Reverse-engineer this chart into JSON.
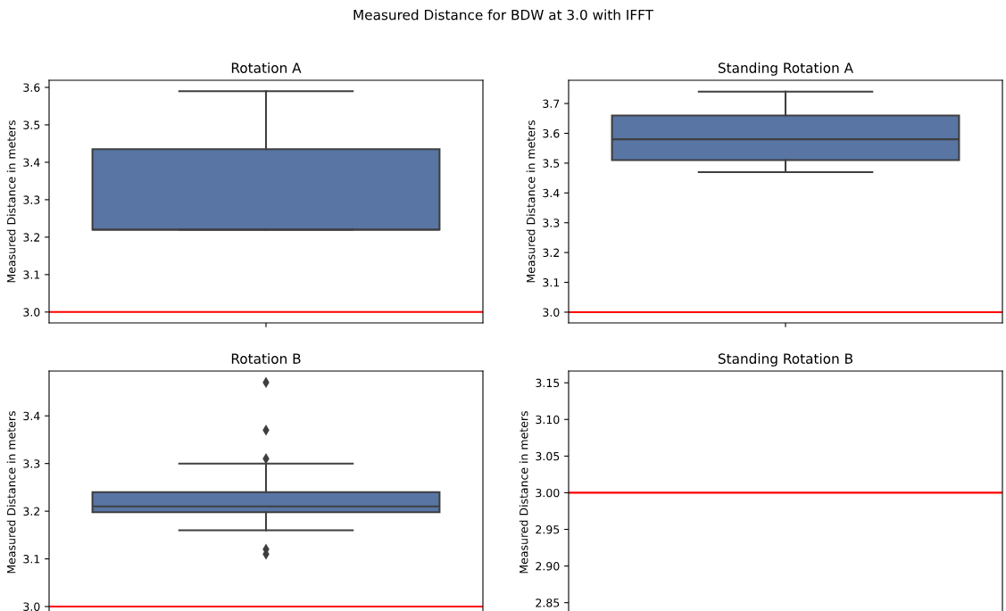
{
  "chart_data": [
    {
      "type": "box",
      "title": "Rotation A",
      "ylabel": "Measured Distance in meters",
      "categories": [
        null
      ],
      "color": "#5875a4",
      "annotations": [
        "Measured Distance for BDW at 3.0 with IFFT"
      ],
      "boxes": [
        {
          "low": 3.22,
          "q1": 3.22,
          "median": 3.22,
          "q3": 3.435,
          "high": 3.59
        }
      ],
      "ylim": [
        2.971,
        3.619
      ],
      "yticks": [
        {
          "value": 3.0,
          "label": "3.0"
        },
        3.1,
        3.2,
        3.3,
        3.4,
        3.5,
        3.6
      ],
      "ref_lines": [
        {
          "axis": "y",
          "value": 3.0,
          "color": "#ff0000"
        }
      ],
      "tick_labels": "y"
    },
    {
      "type": "box",
      "title": "Standing Rotation A",
      "ylabel": "Measured Distance in meters",
      "categories": [
        null
      ],
      "color": "#5875a4",
      "boxes": [
        {
          "low": 3.47,
          "q1": 3.51,
          "median": 3.58,
          "q3": 3.66,
          "high": 3.74
        }
      ],
      "ylim": [
        2.964,
        3.778
      ],
      "yticks": [
        {
          "value": 3.0,
          "label": "3.0"
        },
        3.1,
        3.2,
        3.3,
        3.4,
        3.5,
        3.6,
        3.7
      ],
      "ref_lines": [
        {
          "axis": "y",
          "value": 3.0,
          "color": "#ff0000"
        }
      ],
      "tick_labels": "y"
    },
    {
      "type": "box",
      "title": "Rotation B",
      "ylabel": "Measured Distance in meters",
      "categories": [
        null
      ],
      "color": "#5875a4",
      "boxes": [
        {
          "low": 3.16,
          "q1": 3.198,
          "median": 3.21,
          "q3": 3.24,
          "high": 3.3,
          "outliers": [
            3.47,
            3.37,
            3.31,
            3.12,
            3.11
          ]
        }
      ],
      "ylim": [
        2.985,
        3.494
      ],
      "yticks": [
        {
          "value": 3.0,
          "label": "3.0"
        },
        3.1,
        3.2,
        3.3,
        3.4
      ],
      "ref_lines": [
        {
          "axis": "y",
          "value": 3.0,
          "color": "#ff0000"
        }
      ],
      "tick_labels": "y"
    },
    {
      "type": "box",
      "title": "Standing Rotation B",
      "ylabel": "Measured Distance in meters",
      "categories": [
        null
      ],
      "boxes": [
        null
      ],
      "ylim": [
        2.835,
        3.166
      ],
      "yticks": [
        {
          "value": 2.85,
          "label": "2.85"
        },
        {
          "value": 2.9,
          "label": "2.90"
        },
        {
          "value": 2.95,
          "label": "2.95"
        },
        {
          "value": 3.0,
          "label": "3.00"
        },
        {
          "value": 3.05,
          "label": "3.05"
        },
        {
          "value": 3.1,
          "label": "3.10"
        },
        {
          "value": 3.15,
          "label": "3.15"
        }
      ],
      "ref_lines": [
        {
          "axis": "y",
          "value": 3.0,
          "color": "#ff0000"
        }
      ],
      "tick_labels": "y"
    }
  ]
}
